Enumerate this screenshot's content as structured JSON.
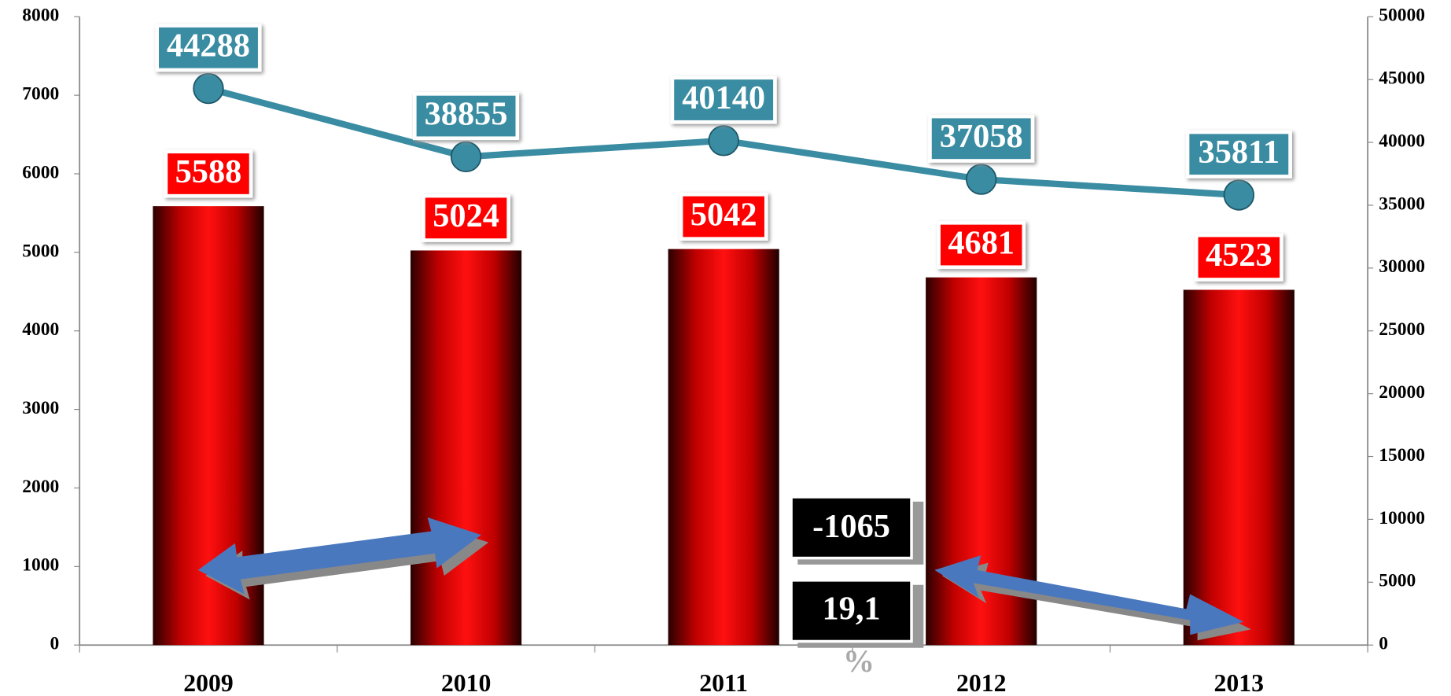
{
  "chart_data": {
    "type": "bar",
    "categories": [
      "2009",
      "2010",
      "2011",
      "2012",
      "2013"
    ],
    "series": [
      {
        "type": "bar",
        "color": "#ff0000",
        "values": [
          5588,
          5024,
          5042,
          4681,
          4523
        ]
      },
      {
        "type": "line",
        "axis": "y2",
        "color": "#3a8ca2",
        "values": [
          44288,
          38855,
          40140,
          37058,
          35811
        ]
      }
    ],
    "ylim": [
      0,
      8000
    ],
    "yticks": [
      0,
      1000,
      2000,
      3000,
      4000,
      5000,
      6000,
      7000,
      8000
    ],
    "y2lim": [
      0,
      50000
    ],
    "y2ticks": [
      0,
      5000,
      10000,
      15000,
      20000,
      25000,
      30000,
      35000,
      40000,
      45000,
      50000
    ],
    "annotations": [
      "-1065",
      "19,1",
      "%"
    ]
  }
}
